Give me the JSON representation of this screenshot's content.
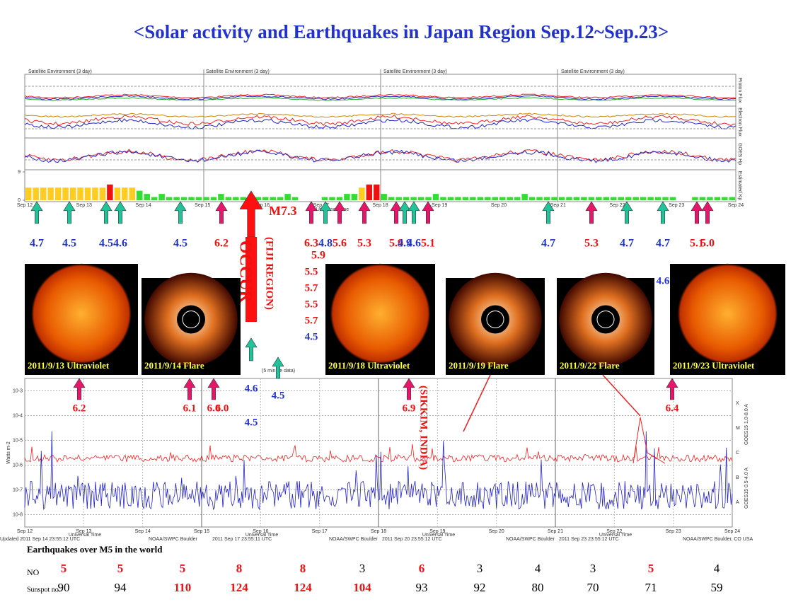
{
  "title": "<Solar activity and Earthquakes in Japan Region Sep.12~Sep.23>",
  "top_plot": {
    "headers": [
      "Satellite Environment (3 day)",
      "Satellite Environment (3 day)",
      "Satellite Environment (3 day)",
      "Satellite Environment (3 day)"
    ],
    "right_labels": [
      "Proton Flux",
      "Electron Flux",
      "GOES Hp",
      "Estimated Kp"
    ],
    "kp": {
      "ylim": [
        0,
        9
      ],
      "yticks": [
        0,
        9
      ],
      "values": [
        4,
        4,
        4,
        4,
        4,
        4,
        4,
        4,
        4,
        4,
        4,
        5,
        4,
        4,
        4,
        3,
        2,
        1,
        2,
        1,
        1,
        1,
        1,
        1,
        1,
        1,
        2,
        1,
        1,
        1,
        1,
        1,
        1,
        1,
        1,
        2,
        1,
        0,
        0,
        0,
        1,
        1,
        1,
        2,
        2,
        4,
        5,
        5,
        2,
        1,
        1,
        1,
        1,
        1,
        1,
        2,
        1,
        1,
        1,
        1,
        1,
        1,
        1,
        1,
        1,
        1,
        1,
        2,
        1,
        1,
        1,
        1,
        1,
        1,
        1,
        1,
        1,
        1,
        1,
        1,
        1,
        1,
        1,
        1,
        1,
        1,
        1,
        1,
        0,
        0,
        1,
        1,
        1,
        1,
        1,
        1
      ]
    },
    "x_labels": [
      "Sep 12",
      "Sep 13",
      "Sep 14",
      "Sep 15",
      "Sep 16",
      "Sep 17",
      "Sep 18",
      "Sep 19",
      "Sep 20",
      "Sep 21",
      "Sep 22",
      "Sep 23",
      "Sep 24"
    ],
    "axis_label": "Universal Time"
  },
  "quakes_top": [
    {
      "label": "4.7",
      "color": "blue"
    },
    {
      "label": "4.5",
      "color": "blue"
    },
    {
      "label": "4.5",
      "color": "blue"
    },
    {
      "label": "4.6",
      "color": "blue"
    },
    {
      "label": "4.5",
      "color": "blue"
    },
    {
      "label": "6.2",
      "color": "red"
    },
    {
      "label": "6.3",
      "color": "red"
    },
    {
      "label": "5.9",
      "color": "red"
    },
    {
      "label": "4.8",
      "color": "blue"
    },
    {
      "label": "5.6",
      "color": "red"
    },
    {
      "label": "5.3",
      "color": "red"
    },
    {
      "label": "5.9",
      "color": "red"
    },
    {
      "label": "4.9",
      "color": "blue"
    },
    {
      "label": "4.6",
      "color": "blue"
    },
    {
      "label": "5.1",
      "color": "red"
    },
    {
      "label": "4.7",
      "color": "blue"
    },
    {
      "label": "5.3",
      "color": "red"
    },
    {
      "label": "4.7",
      "color": "blue"
    },
    {
      "label": "4.7",
      "color": "blue"
    },
    {
      "label": "5.1",
      "color": "red"
    },
    {
      "label": "5.0",
      "color": "red"
    }
  ],
  "quake_extra": [
    "5.5",
    "5.7",
    "5.5",
    "5.7",
    "4.5"
  ],
  "quake_extra2": "4.6",
  "big_event": {
    "label": "M7.3",
    "region": "(FIJI REGION)",
    "word": "OCCUR"
  },
  "quakes_bottom": [
    {
      "label": "6.2",
      "color": "red"
    },
    {
      "label": "6.1",
      "color": "red"
    },
    {
      "label": "6.0",
      "color": "red"
    },
    {
      "label": "6.0",
      "color": "red"
    },
    {
      "label": "4.6",
      "color": "blue"
    },
    {
      "label": "4.5",
      "color": "blue"
    },
    {
      "label": "4.5",
      "color": "blue"
    },
    {
      "label": "6.9",
      "color": "red"
    },
    {
      "label": "6.4",
      "color": "red"
    }
  ],
  "india": "(SIKKIM, INDIA)",
  "images": [
    "2011/9/13 Ultraviolet",
    "2011/9/14 Flare",
    "2011/9/18 Ultraviolet",
    "2011/9/19 Flare",
    "2011/9/22 Flare",
    "2011/9/23 Ultraviolet"
  ],
  "xray": {
    "note": "(5 minute data)",
    "ylabel": "Watts m-2",
    "legend": [
      "GOES15 1.0-8.0 A",
      "GOES15 0.5-4.0 A"
    ],
    "classes": [
      "X",
      "M",
      "C",
      "B",
      "A"
    ],
    "yticks": [
      "10-3",
      "10-4",
      "10-5",
      "10-6",
      "10-7",
      "10-8"
    ],
    "x_labels": [
      "Sep 12",
      "Sep 13",
      "Sep 14",
      "Sep 15",
      "Sep 16",
      "Sep 17",
      "Sep 18",
      "Sep 19",
      "Sep 20",
      "Sep 21",
      "Sep 22",
      "Sep 23",
      "Sep 24"
    ],
    "axis_label": "Universal Time",
    "footers": [
      "Updated 2011 Sep 14 23:55:12 UTC",
      "NOAA/SWPC Boulder",
      "2011 Sep 17 23:55:11 UTC",
      "NOAA/SWPC Boulder",
      "2011 Sep 20 23:55:12 UTC",
      "NOAA/SWPC Boulder",
      "2011 Sep 23 23:55:12 UTC",
      "NOAA/SWPC Boulder, CO USA"
    ]
  },
  "table": {
    "heading": "Earthquakes over M5 in the world",
    "row_labels": [
      "NO",
      "Sunspot no."
    ],
    "no": [
      5,
      5,
      5,
      8,
      8,
      3,
      6,
      3,
      4,
      3,
      5,
      4
    ],
    "no_colors": [
      "red",
      "red",
      "red",
      "red",
      "red",
      "black",
      "red",
      "black",
      "black",
      "black",
      "red",
      "black"
    ],
    "sunspot": [
      90,
      94,
      110,
      124,
      124,
      104,
      93,
      92,
      80,
      70,
      71,
      59
    ],
    "sunspot_colors": [
      "black",
      "black",
      "red",
      "red",
      "red",
      "red",
      "black",
      "black",
      "black",
      "black",
      "black",
      "black"
    ]
  }
}
